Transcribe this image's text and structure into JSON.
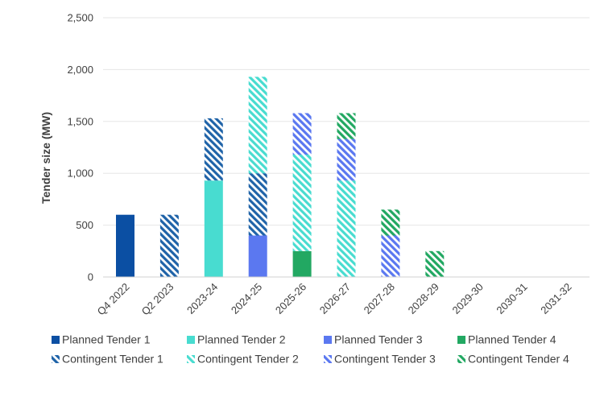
{
  "chart_data": {
    "type": "bar",
    "stacked": true,
    "title": "",
    "xlabel": "",
    "ylabel": "Tender size (MW)",
    "ylim": [
      0,
      2500
    ],
    "yticks": [
      0,
      500,
      1000,
      1500,
      2000,
      2500
    ],
    "ytick_labels": [
      "0",
      "500",
      "1,000",
      "1,500",
      "2,000",
      "2,500"
    ],
    "grid": true,
    "legend_position": "bottom",
    "categories": [
      "Q4 2022",
      "Q2 2023",
      "2023-24",
      "2024-25",
      "2025-26",
      "2026-27",
      "2027-28",
      "2028-29",
      "2029-30",
      "2030-31",
      "2031-32"
    ],
    "series": [
      {
        "name": "Planned Tender 1",
        "color": "#0b4fa3",
        "pattern": "solid",
        "values": [
          600,
          0,
          0,
          0,
          0,
          0,
          0,
          0,
          0,
          0,
          0
        ]
      },
      {
        "name": "Planned Tender 2",
        "color": "#48dcd0",
        "pattern": "solid",
        "values": [
          0,
          0,
          930,
          0,
          0,
          0,
          0,
          0,
          0,
          0,
          0
        ]
      },
      {
        "name": "Planned Tender 3",
        "color": "#5b78f0",
        "pattern": "solid",
        "values": [
          0,
          0,
          0,
          400,
          0,
          0,
          0,
          0,
          0,
          0,
          0
        ]
      },
      {
        "name": "Planned Tender 4",
        "color": "#22a862",
        "pattern": "solid",
        "values": [
          0,
          0,
          0,
          0,
          250,
          0,
          0,
          0,
          0,
          0,
          0
        ]
      },
      {
        "name": "Contingent Tender 1",
        "color": "#1f63a8",
        "pattern": "hatched",
        "values": [
          0,
          600,
          600,
          600,
          0,
          0,
          0,
          0,
          0,
          0,
          0
        ]
      },
      {
        "name": "Contingent Tender 2",
        "color": "#48dcd0",
        "pattern": "hatched",
        "values": [
          0,
          0,
          0,
          930,
          930,
          930,
          0,
          0,
          0,
          0,
          0
        ]
      },
      {
        "name": "Contingent Tender 3",
        "color": "#5b78f0",
        "pattern": "hatched",
        "values": [
          0,
          0,
          0,
          0,
          400,
          400,
          400,
          0,
          0,
          0,
          0
        ]
      },
      {
        "name": "Contingent Tender 4",
        "color": "#22a862",
        "pattern": "hatched",
        "values": [
          0,
          0,
          0,
          0,
          0,
          250,
          250,
          250,
          0,
          0,
          0
        ]
      }
    ]
  }
}
